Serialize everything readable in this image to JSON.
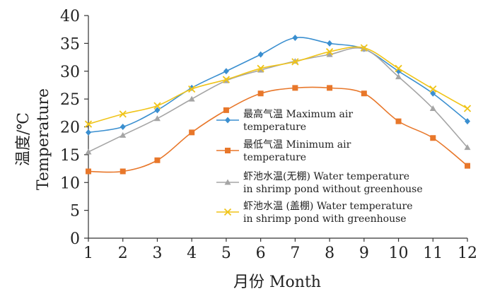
{
  "chart_data": {
    "type": "line",
    "title": "",
    "xlabel": "月份 Month",
    "ylabel_cn": "温度/℃",
    "ylabel_en": "Temperature",
    "x": [
      1,
      2,
      3,
      4,
      5,
      6,
      7,
      8,
      9,
      10,
      11,
      12
    ],
    "xlim": [
      1,
      12
    ],
    "ylim": [
      0,
      40
    ],
    "yticks": [
      0,
      5,
      10,
      15,
      20,
      25,
      30,
      35,
      40
    ],
    "grid": false,
    "legend_position": "center-right",
    "series": [
      {
        "name_line1": "最高气温 Maximum air",
        "name_line2": "temperature",
        "color": "#3a8fd0",
        "marker": "diamond",
        "values": [
          19,
          20,
          23,
          27,
          30,
          33,
          36,
          35,
          34,
          30,
          26,
          21
        ]
      },
      {
        "name_line1": "最低气温 Minimum air",
        "name_line2": "temperature",
        "color": "#e8772a",
        "marker": "square",
        "values": [
          12,
          12,
          14,
          19,
          23,
          26,
          27,
          27,
          26,
          21,
          18,
          13
        ]
      },
      {
        "name_line1": "虾池水温(无棚) Water temperature",
        "name_line2": "in shrimp pond without greenhouse",
        "color": "#a5a5a5",
        "marker": "triangle",
        "values": [
          15.5,
          18.5,
          21.5,
          25,
          28.3,
          30.2,
          31.8,
          33,
          34,
          29,
          23.3,
          16.3
        ]
      },
      {
        "name_line1": "虾池水温 (盖棚) Water temperature",
        "name_line2": "in shrimp pond with greenhouse",
        "color": "#f0c419",
        "marker": "x",
        "values": [
          20.5,
          22.3,
          23.8,
          26.8,
          28.5,
          30.5,
          31.7,
          33.5,
          34.2,
          30.5,
          26.8,
          23.3
        ]
      }
    ]
  }
}
